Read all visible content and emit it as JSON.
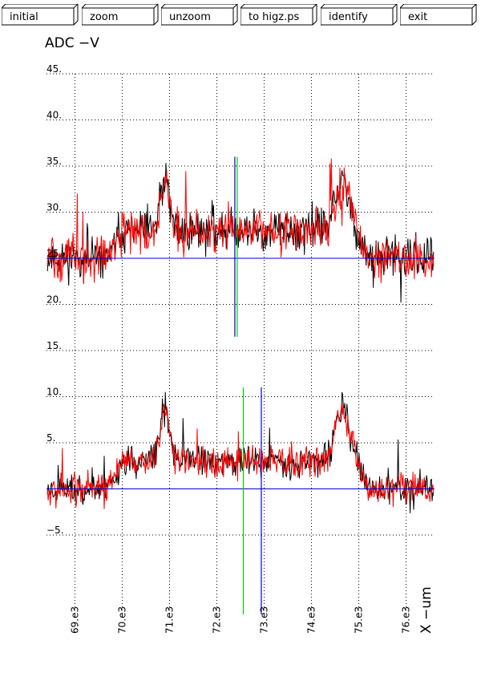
{
  "toolbar": {
    "buttons": [
      {
        "label": "initial"
      },
      {
        "label": "zoom"
      },
      {
        "label": "unzoom"
      },
      {
        "label": "to higz.ps"
      },
      {
        "label": "identify"
      },
      {
        "label": "exit"
      }
    ]
  },
  "chart_data": {
    "type": "line",
    "ylabel": "ADC  −V",
    "xlabel": "X  −um",
    "xlim": [
      6840,
      7660
    ],
    "ylim": [
      -7,
      45
    ],
    "grid": true,
    "x_ticks": [
      6900,
      7000,
      7100,
      7200,
      7300,
      7400,
      7500,
      7600
    ],
    "x_tick_labels": [
      "69.e3",
      "70.e3",
      "71.e3",
      "72.e3",
      "73.e3",
      "74.e3",
      "75.e3",
      "76.e3"
    ],
    "y_ticks": [
      -5,
      0,
      5,
      10,
      15,
      20,
      25,
      30,
      35,
      40,
      45
    ],
    "y_tick_labels": [
      "−5.",
      "",
      "5.",
      "10.",
      "15.",
      "20.",
      "25.",
      "30.",
      "35.",
      "40.",
      "45."
    ],
    "colors": {
      "series_black": "#000000",
      "series_red": "#ff0000",
      "baseline": "#0000cc",
      "marker_green": "#00cc00",
      "marker_blue": "#0000cc"
    },
    "traces": [
      {
        "offset": 25,
        "peak_left": 8,
        "peak_right": 3.5,
        "plateau": 3,
        "noise": 2.2,
        "seed": 11
      },
      {
        "offset": 0,
        "peak_left": 8,
        "peak_right": 8.2,
        "plateau": 3,
        "noise": 1.7,
        "seed": 23
      }
    ],
    "baselines": [
      25,
      0
    ],
    "upper_markers": [
      {
        "color": "blue",
        "x": 7238,
        "ymin": 16.5,
        "ymax": 36
      },
      {
        "color": "green",
        "x": 7243,
        "ymin": 16.5,
        "ymax": 36
      }
    ],
    "lower_markers": [
      {
        "color": "green",
        "x": 7256,
        "ymin": -8,
        "ymax": 11
      },
      {
        "color": "blue",
        "x": 7294,
        "ymin": -8,
        "ymax": 11
      }
    ]
  }
}
